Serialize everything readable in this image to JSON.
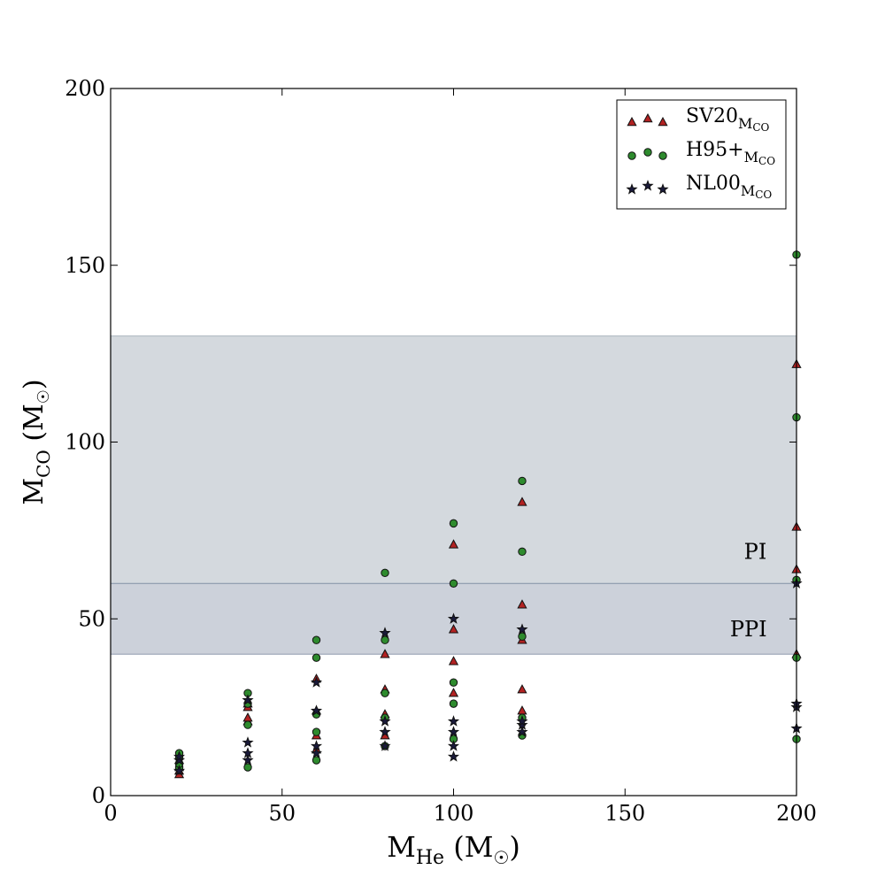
{
  "chart_data": {
    "type": "scatter",
    "xlim": [
      0,
      200
    ],
    "ylim": [
      0,
      200
    ],
    "xticks": [
      0,
      50,
      100,
      150,
      200
    ],
    "yticks": [
      0,
      50,
      100,
      150,
      200
    ],
    "xlabel": {
      "main": "M",
      "sub": "He",
      "unit": " (M",
      "sun": "☉",
      "close": ")"
    },
    "ylabel": {
      "main": "M",
      "sub": "CO",
      "unit": " (M",
      "sun": "☉",
      "close": ")"
    },
    "grid": false,
    "legend_position": "top-right",
    "bands": [
      {
        "name": "PI",
        "y_range": [
          60,
          130
        ],
        "color": "#aab4bd",
        "opacity": 0.5,
        "label_x": 188,
        "label_y": 67
      },
      {
        "name": "PPI",
        "y_range": [
          40,
          60
        ],
        "color": "#8e9aae",
        "opacity": 0.45,
        "label_x": 186,
        "label_y": 45
      }
    ],
    "series": [
      {
        "name": "SV20",
        "sub": "M",
        "subsub": "CO",
        "marker": "triangle",
        "color": "#b22222",
        "points": [
          [
            20,
            6
          ],
          [
            20,
            7
          ],
          [
            20,
            8
          ],
          [
            20,
            10
          ],
          [
            40,
            21
          ],
          [
            40,
            22
          ],
          [
            40,
            25
          ],
          [
            40,
            26
          ],
          [
            60,
            13
          ],
          [
            60,
            17
          ],
          [
            60,
            24
          ],
          [
            60,
            33
          ],
          [
            80,
            17
          ],
          [
            80,
            23
          ],
          [
            80,
            30
          ],
          [
            80,
            40
          ],
          [
            100,
            29
          ],
          [
            100,
            38
          ],
          [
            100,
            47
          ],
          [
            100,
            71
          ],
          [
            120,
            24
          ],
          [
            120,
            30
          ],
          [
            120,
            44
          ],
          [
            120,
            54
          ],
          [
            120,
            83
          ],
          [
            200,
            40
          ],
          [
            200,
            64
          ],
          [
            200,
            76
          ],
          [
            200,
            122
          ]
        ]
      },
      {
        "name": "H95+",
        "sub": "M",
        "subsub": "CO",
        "marker": "circle",
        "color": "#2e8b2e",
        "points": [
          [
            20,
            8
          ],
          [
            20,
            9
          ],
          [
            20,
            11
          ],
          [
            20,
            12
          ],
          [
            40,
            8
          ],
          [
            40,
            20
          ],
          [
            40,
            26
          ],
          [
            40,
            29
          ],
          [
            60,
            10
          ],
          [
            60,
            18
          ],
          [
            60,
            23
          ],
          [
            60,
            39
          ],
          [
            60,
            44
          ],
          [
            80,
            14
          ],
          [
            80,
            22
          ],
          [
            80,
            29
          ],
          [
            80,
            44
          ],
          [
            80,
            63
          ],
          [
            100,
            16
          ],
          [
            100,
            26
          ],
          [
            100,
            32
          ],
          [
            100,
            60
          ],
          [
            100,
            77
          ],
          [
            120,
            17
          ],
          [
            120,
            22
          ],
          [
            120,
            45
          ],
          [
            120,
            69
          ],
          [
            120,
            89
          ],
          [
            200,
            16
          ],
          [
            200,
            39
          ],
          [
            200,
            61
          ],
          [
            200,
            107
          ],
          [
            200,
            153
          ]
        ]
      },
      {
        "name": "NL00",
        "sub": "M",
        "subsub": "CO",
        "marker": "star",
        "color": "#1a1a3a",
        "points": [
          [
            20,
            7
          ],
          [
            20,
            10
          ],
          [
            20,
            11
          ],
          [
            40,
            10
          ],
          [
            40,
            12
          ],
          [
            40,
            15
          ],
          [
            40,
            27
          ],
          [
            60,
            12
          ],
          [
            60,
            14
          ],
          [
            60,
            24
          ],
          [
            60,
            32
          ],
          [
            80,
            14
          ],
          [
            80,
            18
          ],
          [
            80,
            21
          ],
          [
            80,
            46
          ],
          [
            100,
            11
          ],
          [
            100,
            14
          ],
          [
            100,
            18
          ],
          [
            100,
            21
          ],
          [
            100,
            50
          ],
          [
            120,
            18
          ],
          [
            120,
            20
          ],
          [
            120,
            21
          ],
          [
            120,
            47
          ],
          [
            200,
            19
          ],
          [
            200,
            25
          ],
          [
            200,
            26
          ],
          [
            200,
            60
          ]
        ]
      }
    ]
  }
}
